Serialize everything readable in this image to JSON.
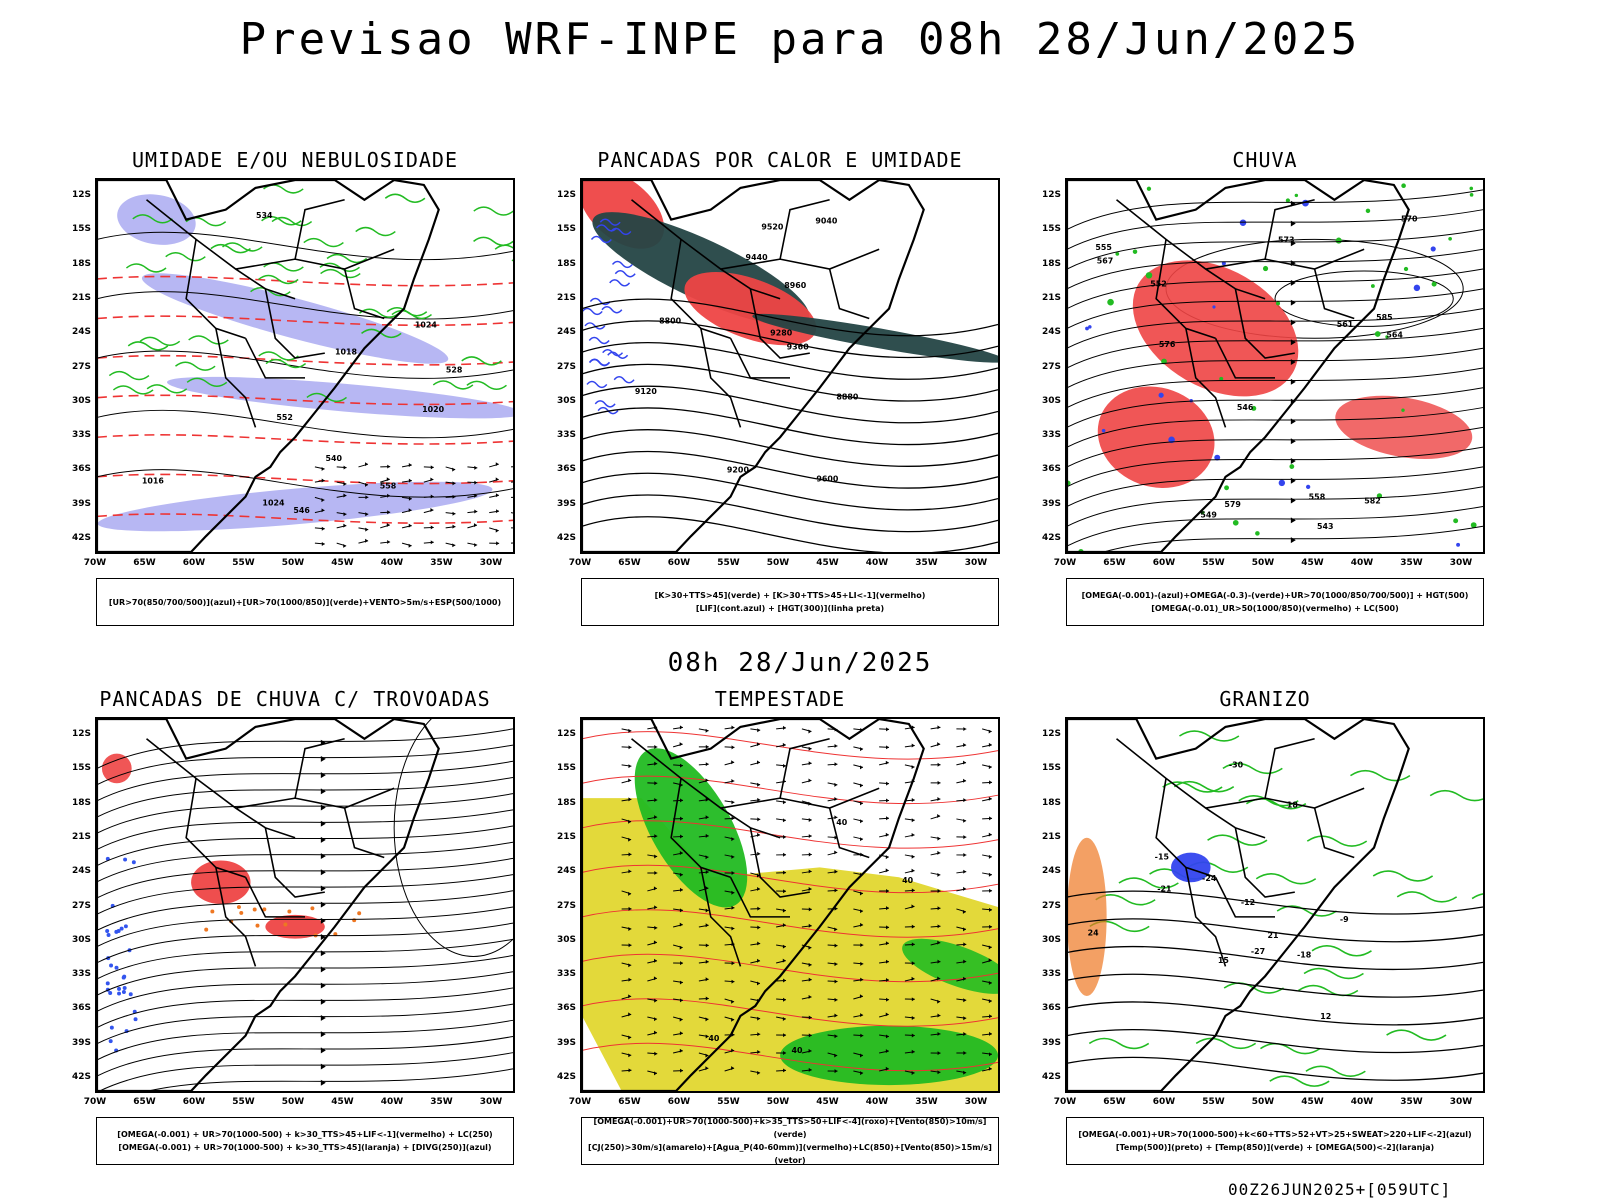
{
  "title": "Previsao WRF-INPE  para 08h 28/Jun/2025",
  "subtitle": "08h 28/Jun/2025",
  "footer": "00Z26JUN2025+[059UTC]",
  "lat_labels": [
    "12S",
    "15S",
    "18S",
    "21S",
    "24S",
    "27S",
    "30S",
    "33S",
    "36S",
    "39S",
    "42S"
  ],
  "lon_labels": [
    "70W",
    "65W",
    "60W",
    "55W",
    "50W",
    "45W",
    "40W",
    "35W",
    "30W"
  ],
  "panels": [
    {
      "id": "umidade",
      "title": "UMIDADE E/OU NEBULOSIDADE",
      "legend": [
        "[UR>70(850/700/500)](azul)+[UR>70(1000/850)](verde)+VENTO>5m/s+ESP(500/1000)"
      ],
      "contour_labels": [
        "1016",
        "1018",
        "1020",
        "1024",
        "1024",
        "552",
        "558",
        "546",
        "540",
        "534",
        "528"
      ]
    },
    {
      "id": "pancadas-calor",
      "title": "PANCADAS POR CALOR E UMIDADE",
      "legend": [
        "[K>30+TTS>45](verde)  +  [K>30+TTS>45+LI<-1](vermelho)",
        "[LIF](cont.azul)  +  [HGT(300)](linha preta)"
      ],
      "contour_labels": [
        "9600",
        "9520",
        "9440",
        "9360",
        "9280",
        "9200",
        "9120",
        "9040",
        "8960",
        "8880",
        "8800"
      ]
    },
    {
      "id": "chuva",
      "title": "CHUVA",
      "legend": [
        "[OMEGA(-0.001)-(azul)+OMEGA(-0.3)-(verde)+UR>70(1000/850/700/500)]  +  HGT(500)",
        "[OMEGA(-0.01)_UR>50(1000/850)(vermelho)  +  LC(500)"
      ],
      "contour_labels": [
        "585",
        "582",
        "579",
        "576",
        "573",
        "570",
        "567",
        "564",
        "561",
        "558",
        "555",
        "552",
        "549",
        "546",
        "543"
      ]
    },
    {
      "id": "trovoadas",
      "title": "PANCADAS DE CHUVA C/ TROVOADAS",
      "legend": [
        "[OMEGA(-0.001)  +  UR>70(1000-500)  +  k>30_TTS>45+LIF<-1](vermelho)  +  LC(250)",
        "[OMEGA(-0.001)  +  UR>70(1000-500)  +  k>30_TTS>45](laranja)  +  [DIVG(250)](azul)"
      ],
      "contour_labels": []
    },
    {
      "id": "tempestade",
      "title": "TEMPESTADE",
      "legend": [
        "[OMEGA(-0.001)+UR>70(1000-500)+k>35_TTS>50+LIF<-4](roxo)+[Vento(850)>10m/s](verde)",
        "[CJ(250)>30m/s](amarelo)+[Agua_P(40-60mm)](vermelho)+LC(850)+[Vento(850)>15m/s](vetor)"
      ],
      "contour_labels": [
        "40",
        "40",
        "40",
        "40"
      ]
    },
    {
      "id": "granizo",
      "title": "GRANIZO",
      "legend": [
        "[OMEGA(-0.001)+UR>70(1000-500)+k<60+TTS>52+VT>25+SWEAT>220+LIF<-2](azul)",
        "[Temp(500)](preto)  +  [Temp(850)](verde)  +  [OMEGA(500)<-2](laranja)"
      ],
      "contour_labels": [
        "-9",
        "-12",
        "-15",
        "-18",
        "-21",
        "-24",
        "-27",
        "-30",
        "24",
        "12",
        "15",
        "18",
        "21"
      ]
    }
  ]
}
